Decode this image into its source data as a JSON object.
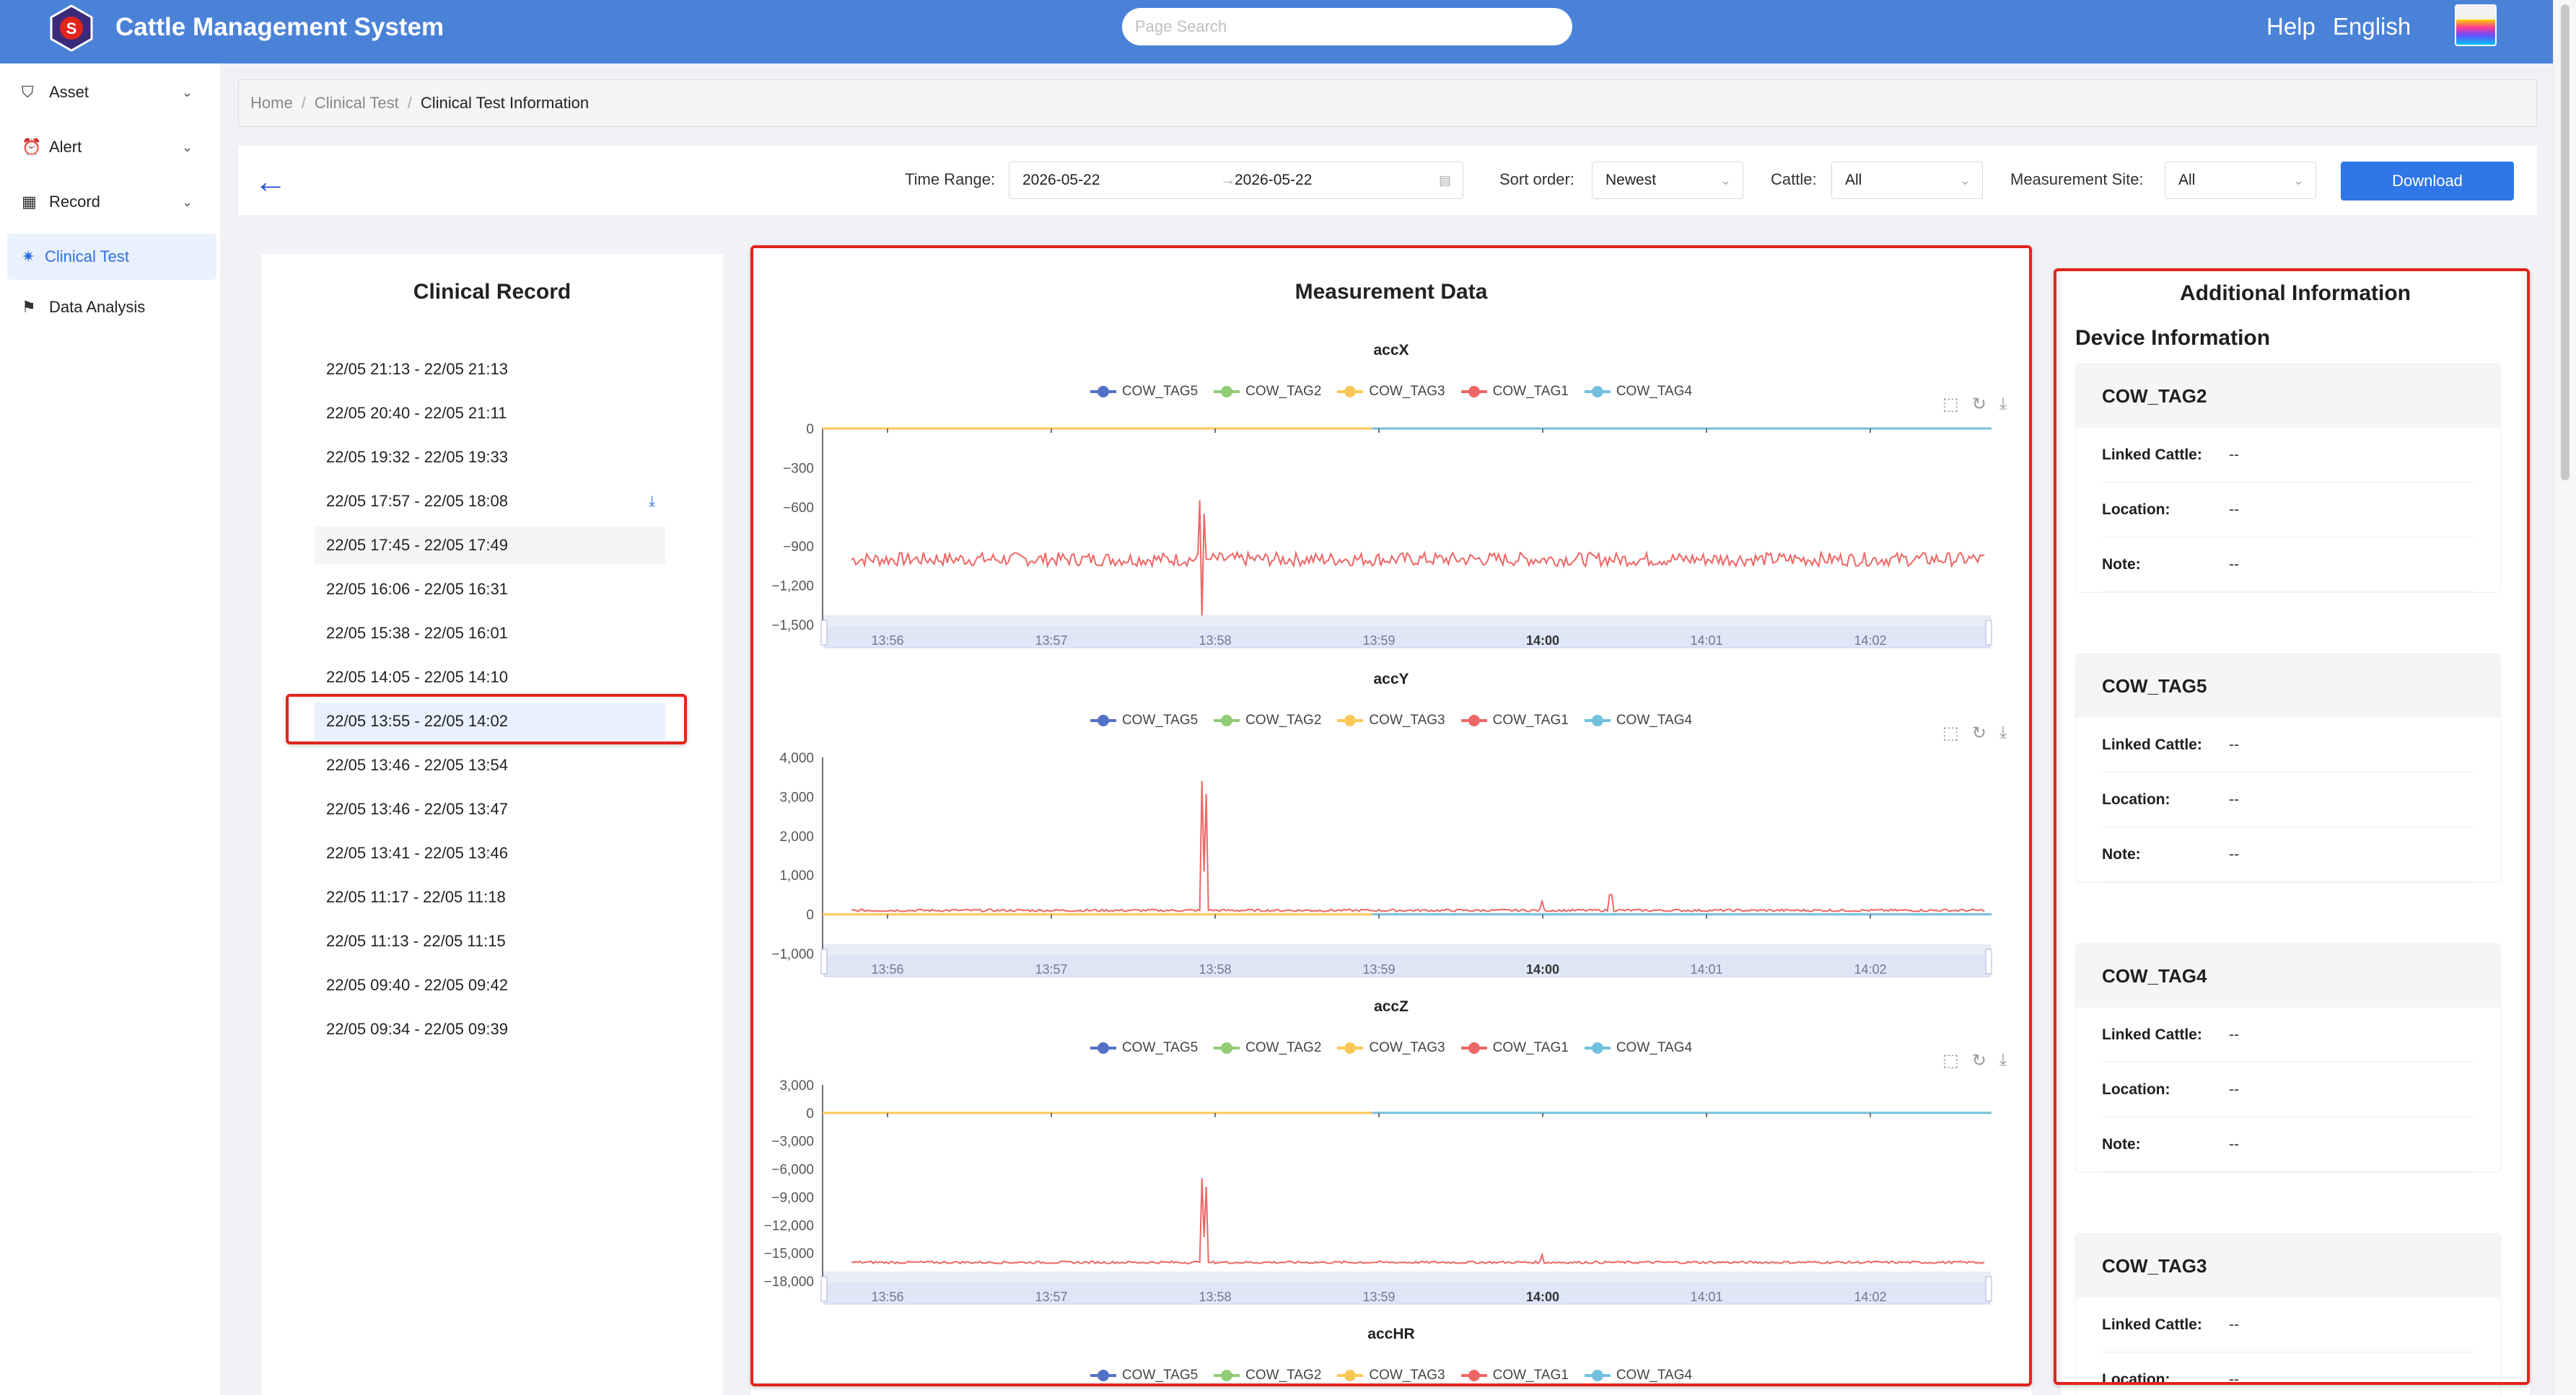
{
  "app": {
    "title": "Cattle Management System"
  },
  "header": {
    "search_placeholder": "Page Search",
    "help": "Help",
    "language": "English"
  },
  "sidebar": {
    "items": [
      {
        "label": "Asset",
        "icon": "bucket-icon",
        "expandable": true
      },
      {
        "label": "Alert",
        "icon": "alarm-icon",
        "expandable": true
      },
      {
        "label": "Record",
        "icon": "calendar-icon",
        "expandable": true
      },
      {
        "label": "Clinical Test",
        "icon": "bug-icon",
        "active": true
      },
      {
        "label": "Data Analysis",
        "icon": "flag-icon"
      }
    ]
  },
  "breadcrumb": [
    "Home",
    "Clinical Test",
    "Clinical Test Information"
  ],
  "filters": {
    "time_range_label": "Time Range:",
    "start_date": "2026-05-22",
    "end_date": "2026-05-22",
    "sort_label": "Sort order:",
    "sort_value": "Newest",
    "cattle_label": "Cattle:",
    "cattle_value": "All",
    "site_label": "Measurement Site:",
    "site_value": "All",
    "download": "Download"
  },
  "records": {
    "title": "Clinical Record",
    "items": [
      "22/05 21:13 - 22/05 21:13",
      "22/05 20:40 - 22/05 21:11",
      "22/05 19:32 - 22/05 19:33",
      "22/05 17:57 - 22/05 18:08",
      "22/05 17:45 - 22/05 17:49",
      "22/05 16:06 - 22/05 16:31",
      "22/05 15:38 - 22/05 16:01",
      "22/05 14:05 - 22/05 14:10",
      "22/05 13:55 - 22/05 14:02",
      "22/05 13:46 - 22/05 13:54",
      "22/05 13:46 - 22/05 13:47",
      "22/05 13:41 - 22/05 13:46",
      "22/05 11:17 - 22/05 11:18",
      "22/05 11:13 - 22/05 11:15",
      "22/05 09:40 - 22/05 09:42",
      "22/05 09:34 - 22/05 09:39"
    ],
    "selected_index": 8,
    "hover_index": 4,
    "download_index": 3
  },
  "measurement": {
    "title": "Measurement Data",
    "legend": [
      {
        "name": "COW_TAG5",
        "color": "#5470c6"
      },
      {
        "name": "COW_TAG2",
        "color": "#91cc75"
      },
      {
        "name": "COW_TAG3",
        "color": "#fac858"
      },
      {
        "name": "COW_TAG1",
        "color": "#ee6666"
      },
      {
        "name": "COW_TAG4",
        "color": "#73c0de"
      }
    ],
    "time_ticks": [
      "13:56",
      "13:57",
      "13:58",
      "13:59",
      "14:00",
      "14:01",
      "14:02"
    ]
  },
  "chart_data": [
    {
      "type": "line",
      "title": "accX",
      "x": [
        "13:56",
        "13:57",
        "13:58",
        "13:59",
        "14:00",
        "14:01",
        "14:02"
      ],
      "ylim": [
        -1500,
        0
      ],
      "yticks": [
        "0",
        "−300",
        "−600",
        "−900",
        "−1,200",
        "−1,500"
      ],
      "series": [
        {
          "name": "COW_TAG3",
          "color": "#fac858",
          "baseline": 0
        },
        {
          "name": "COW_TAG4",
          "color": "#73c0de",
          "baseline": 0
        },
        {
          "name": "COW_TAG1",
          "color": "#ee6666",
          "baseline": -1000,
          "spike_at": "13:58",
          "spike_range": [
            -1450,
            -550
          ]
        }
      ]
    },
    {
      "type": "line",
      "title": "accY",
      "x": [
        "13:56",
        "13:57",
        "13:58",
        "13:59",
        "14:00",
        "14:01",
        "14:02"
      ],
      "ylim": [
        -1000,
        4000
      ],
      "yticks": [
        "4,000",
        "3,000",
        "2,000",
        "1,000",
        "0",
        "−1,000"
      ],
      "series": [
        {
          "name": "COW_TAG3",
          "color": "#fac858",
          "baseline": 0
        },
        {
          "name": "COW_TAG4",
          "color": "#73c0de",
          "baseline": 0
        },
        {
          "name": "COW_TAG1",
          "color": "#ee6666",
          "baseline": 100,
          "spike_at": "13:58",
          "spike_max": 3400
        }
      ]
    },
    {
      "type": "line",
      "title": "accZ",
      "x": [
        "13:56",
        "13:57",
        "13:58",
        "13:59",
        "14:00",
        "14:01",
        "14:02"
      ],
      "ylim": [
        -18000,
        3000
      ],
      "yticks": [
        "3,000",
        "0",
        "−3,000",
        "−6,000",
        "−9,000",
        "−12,000",
        "−15,000",
        "−18,000"
      ],
      "series": [
        {
          "name": "COW_TAG3",
          "color": "#fac858",
          "baseline": 0
        },
        {
          "name": "COW_TAG4",
          "color": "#73c0de",
          "baseline": 0
        },
        {
          "name": "COW_TAG1",
          "color": "#ee6666",
          "baseline": -16000,
          "spike_at": "13:58",
          "spike_max": -7000
        }
      ]
    },
    {
      "type": "line",
      "title": "accHR",
      "x": [],
      "series": []
    }
  ],
  "additional": {
    "title": "Additional Information",
    "subtitle": "Device Information",
    "labels": {
      "linked": "Linked Cattle:",
      "location": "Location:",
      "note": "Note:"
    },
    "devices": [
      {
        "name": "COW_TAG2",
        "linked": "--",
        "location": "--",
        "note": "--"
      },
      {
        "name": "COW_TAG5",
        "linked": "--",
        "location": "--",
        "note": "--"
      },
      {
        "name": "COW_TAG4",
        "linked": "--",
        "location": "--",
        "note": "--"
      },
      {
        "name": "COW_TAG3",
        "linked": "--",
        "location": "--",
        "note": "--"
      }
    ]
  }
}
